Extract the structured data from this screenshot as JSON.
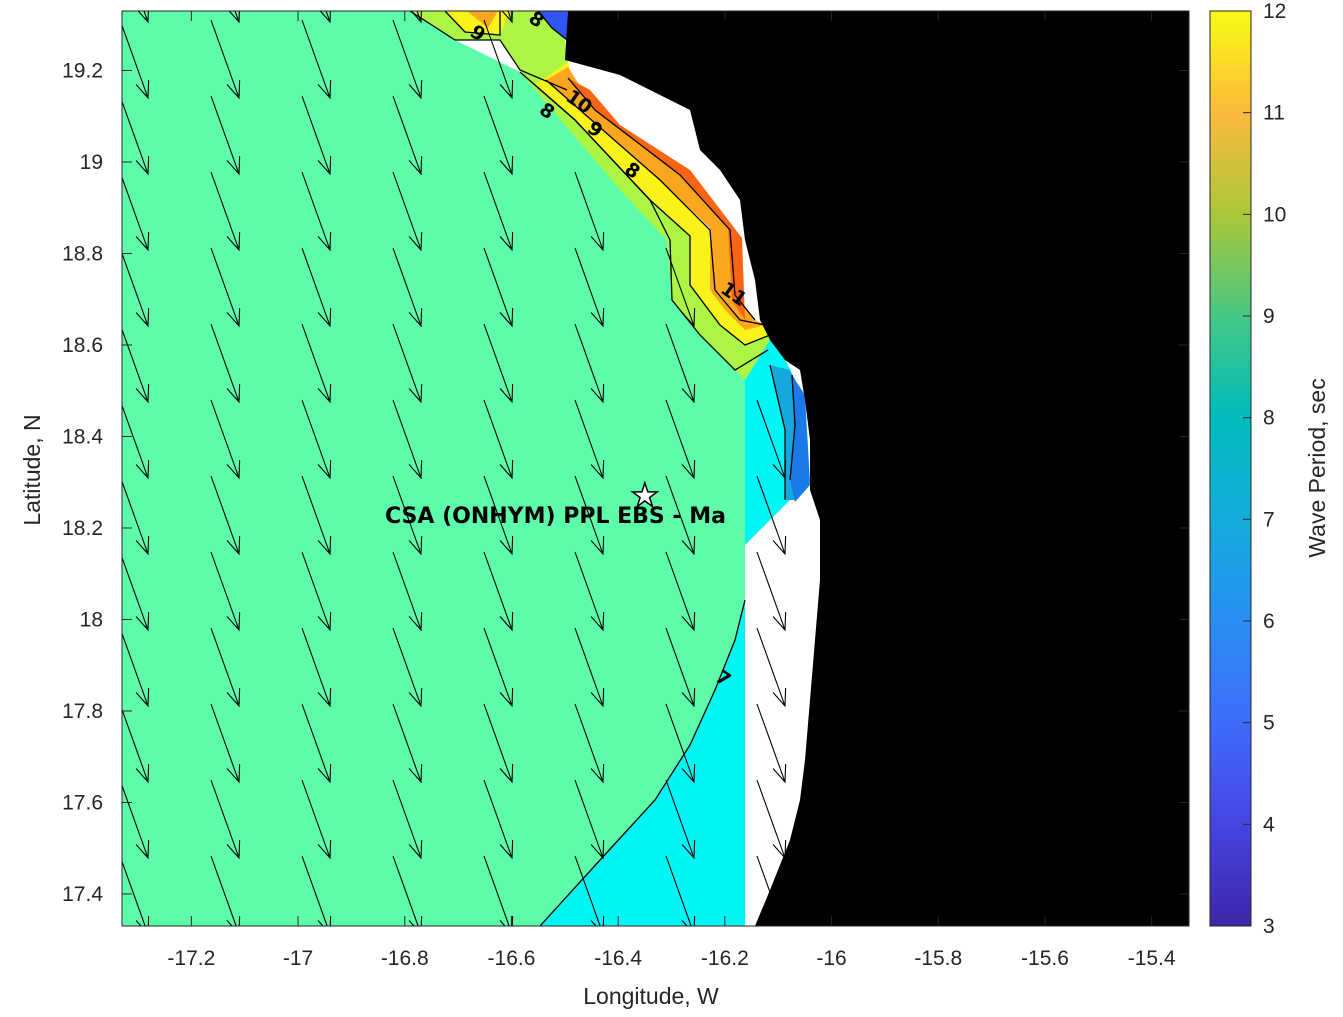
{
  "chart_data": {
    "type": "contour",
    "xlabel": "Longitude, W",
    "ylabel": "Latitude, N",
    "colorbar_label": "Wave Period, sec",
    "xlim": [
      -17.33,
      -15.33
    ],
    "ylim": [
      17.33,
      19.33
    ],
    "xticks": [
      -17.2,
      -17.0,
      -16.8,
      -16.6,
      -16.4,
      -16.2,
      -16.0,
      -15.8,
      -15.6,
      -15.4
    ],
    "xtick_labels": [
      "-17.2",
      "-17",
      "-16.8",
      "-16.6",
      "-16.4",
      "-16.2",
      "-16",
      "-15.8",
      "-15.6",
      "-15.4"
    ],
    "yticks": [
      17.4,
      17.6,
      17.8,
      18.0,
      18.2,
      18.4,
      18.6,
      18.8,
      19.0,
      19.2
    ],
    "ytick_labels": [
      "17.4",
      "17.6",
      "17.8",
      "18",
      "18.2",
      "18.4",
      "18.6",
      "18.8",
      "19",
      "19.2"
    ],
    "colorbar": {
      "range": [
        3,
        12
      ],
      "ticks": [
        3,
        4,
        5,
        6,
        7,
        8,
        9,
        10,
        11,
        12
      ],
      "tick_labels": [
        "3",
        "4",
        "5",
        "6",
        "7",
        "8",
        "9",
        "10",
        "11",
        "12"
      ],
      "colormap": "parula"
    },
    "level_colors": {
      "4": "#2f55f2",
      "5": "#1a7ae8",
      "6": "#14a8df",
      "7": "#00f5f5",
      "8": "#5dfcaa",
      "9": "#acf544",
      "10": "#f9f31a",
      "11": "#fba61f",
      "12": "#f96514"
    },
    "land_color": "#000000",
    "contour_labels": [
      {
        "text": "9",
        "lon": -16.67,
        "lat": 19.27
      },
      {
        "text": "8",
        "lon": -16.56,
        "lat": 19.3
      },
      {
        "text": "10",
        "lon": -16.48,
        "lat": 19.12
      },
      {
        "text": "8",
        "lon": -16.54,
        "lat": 19.1
      },
      {
        "text": "9",
        "lon": -16.45,
        "lat": 19.06
      },
      {
        "text": "8",
        "lon": -16.38,
        "lat": 18.97
      },
      {
        "text": "11",
        "lon": -16.19,
        "lat": 18.7
      },
      {
        "text": "7",
        "lon": -16.21,
        "lat": 17.86
      }
    ],
    "arrows": {
      "meaning": "mean wave direction",
      "typical_direction": "toward south-southeast",
      "grid_spacing_deg": [
        0.2,
        0.167
      ]
    },
    "station": {
      "label": "CSA (ONHYM) PPL EBS  - Ma",
      "lon": -16.35,
      "lat": 18.27,
      "marker": "star"
    }
  }
}
